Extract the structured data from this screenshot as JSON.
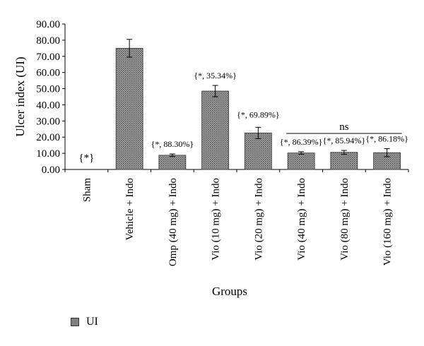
{
  "chart_data": {
    "type": "bar",
    "xlabel": "Groups",
    "ylabel": "Ulcer index (UI)",
    "ylim": [
      0,
      90
    ],
    "yticks": [
      "0.00",
      "10.00",
      "20.00",
      "30.00",
      "40.00",
      "50.00",
      "60.00",
      "70.00",
      "80.00",
      "90.00"
    ],
    "categories": [
      "Sham",
      "Vehicle + Indo",
      "Omp (40 mg) + Indo",
      "Vio (10 mg) + Indo",
      "Vio (20 mg) + Indo",
      "Vio (40 mg) + Indo",
      "Vio (80 mg) + Indo",
      "Vio (160 mg) + Indo"
    ],
    "series": [
      {
        "name": "UI",
        "values": [
          0,
          75.0,
          8.8,
          48.5,
          22.6,
          10.2,
          10.6,
          10.4
        ],
        "errors": [
          0,
          5.5,
          0.8,
          3.5,
          3.5,
          0.8,
          1.2,
          2.5
        ]
      }
    ],
    "annotations": [
      "{*}",
      "",
      "{*, 88.30%}",
      "{*, 35.34%}",
      "{*, 69.89%}",
      "{*, 86.39%}",
      "{*, 85.94%}",
      "{*, 86.18%}"
    ],
    "significance": {
      "label": "ns",
      "from_index": 5,
      "to_index": 7
    },
    "legend": {
      "position": "bottom-left",
      "label": "UI"
    },
    "bar_color": "#808080",
    "grid": false
  }
}
